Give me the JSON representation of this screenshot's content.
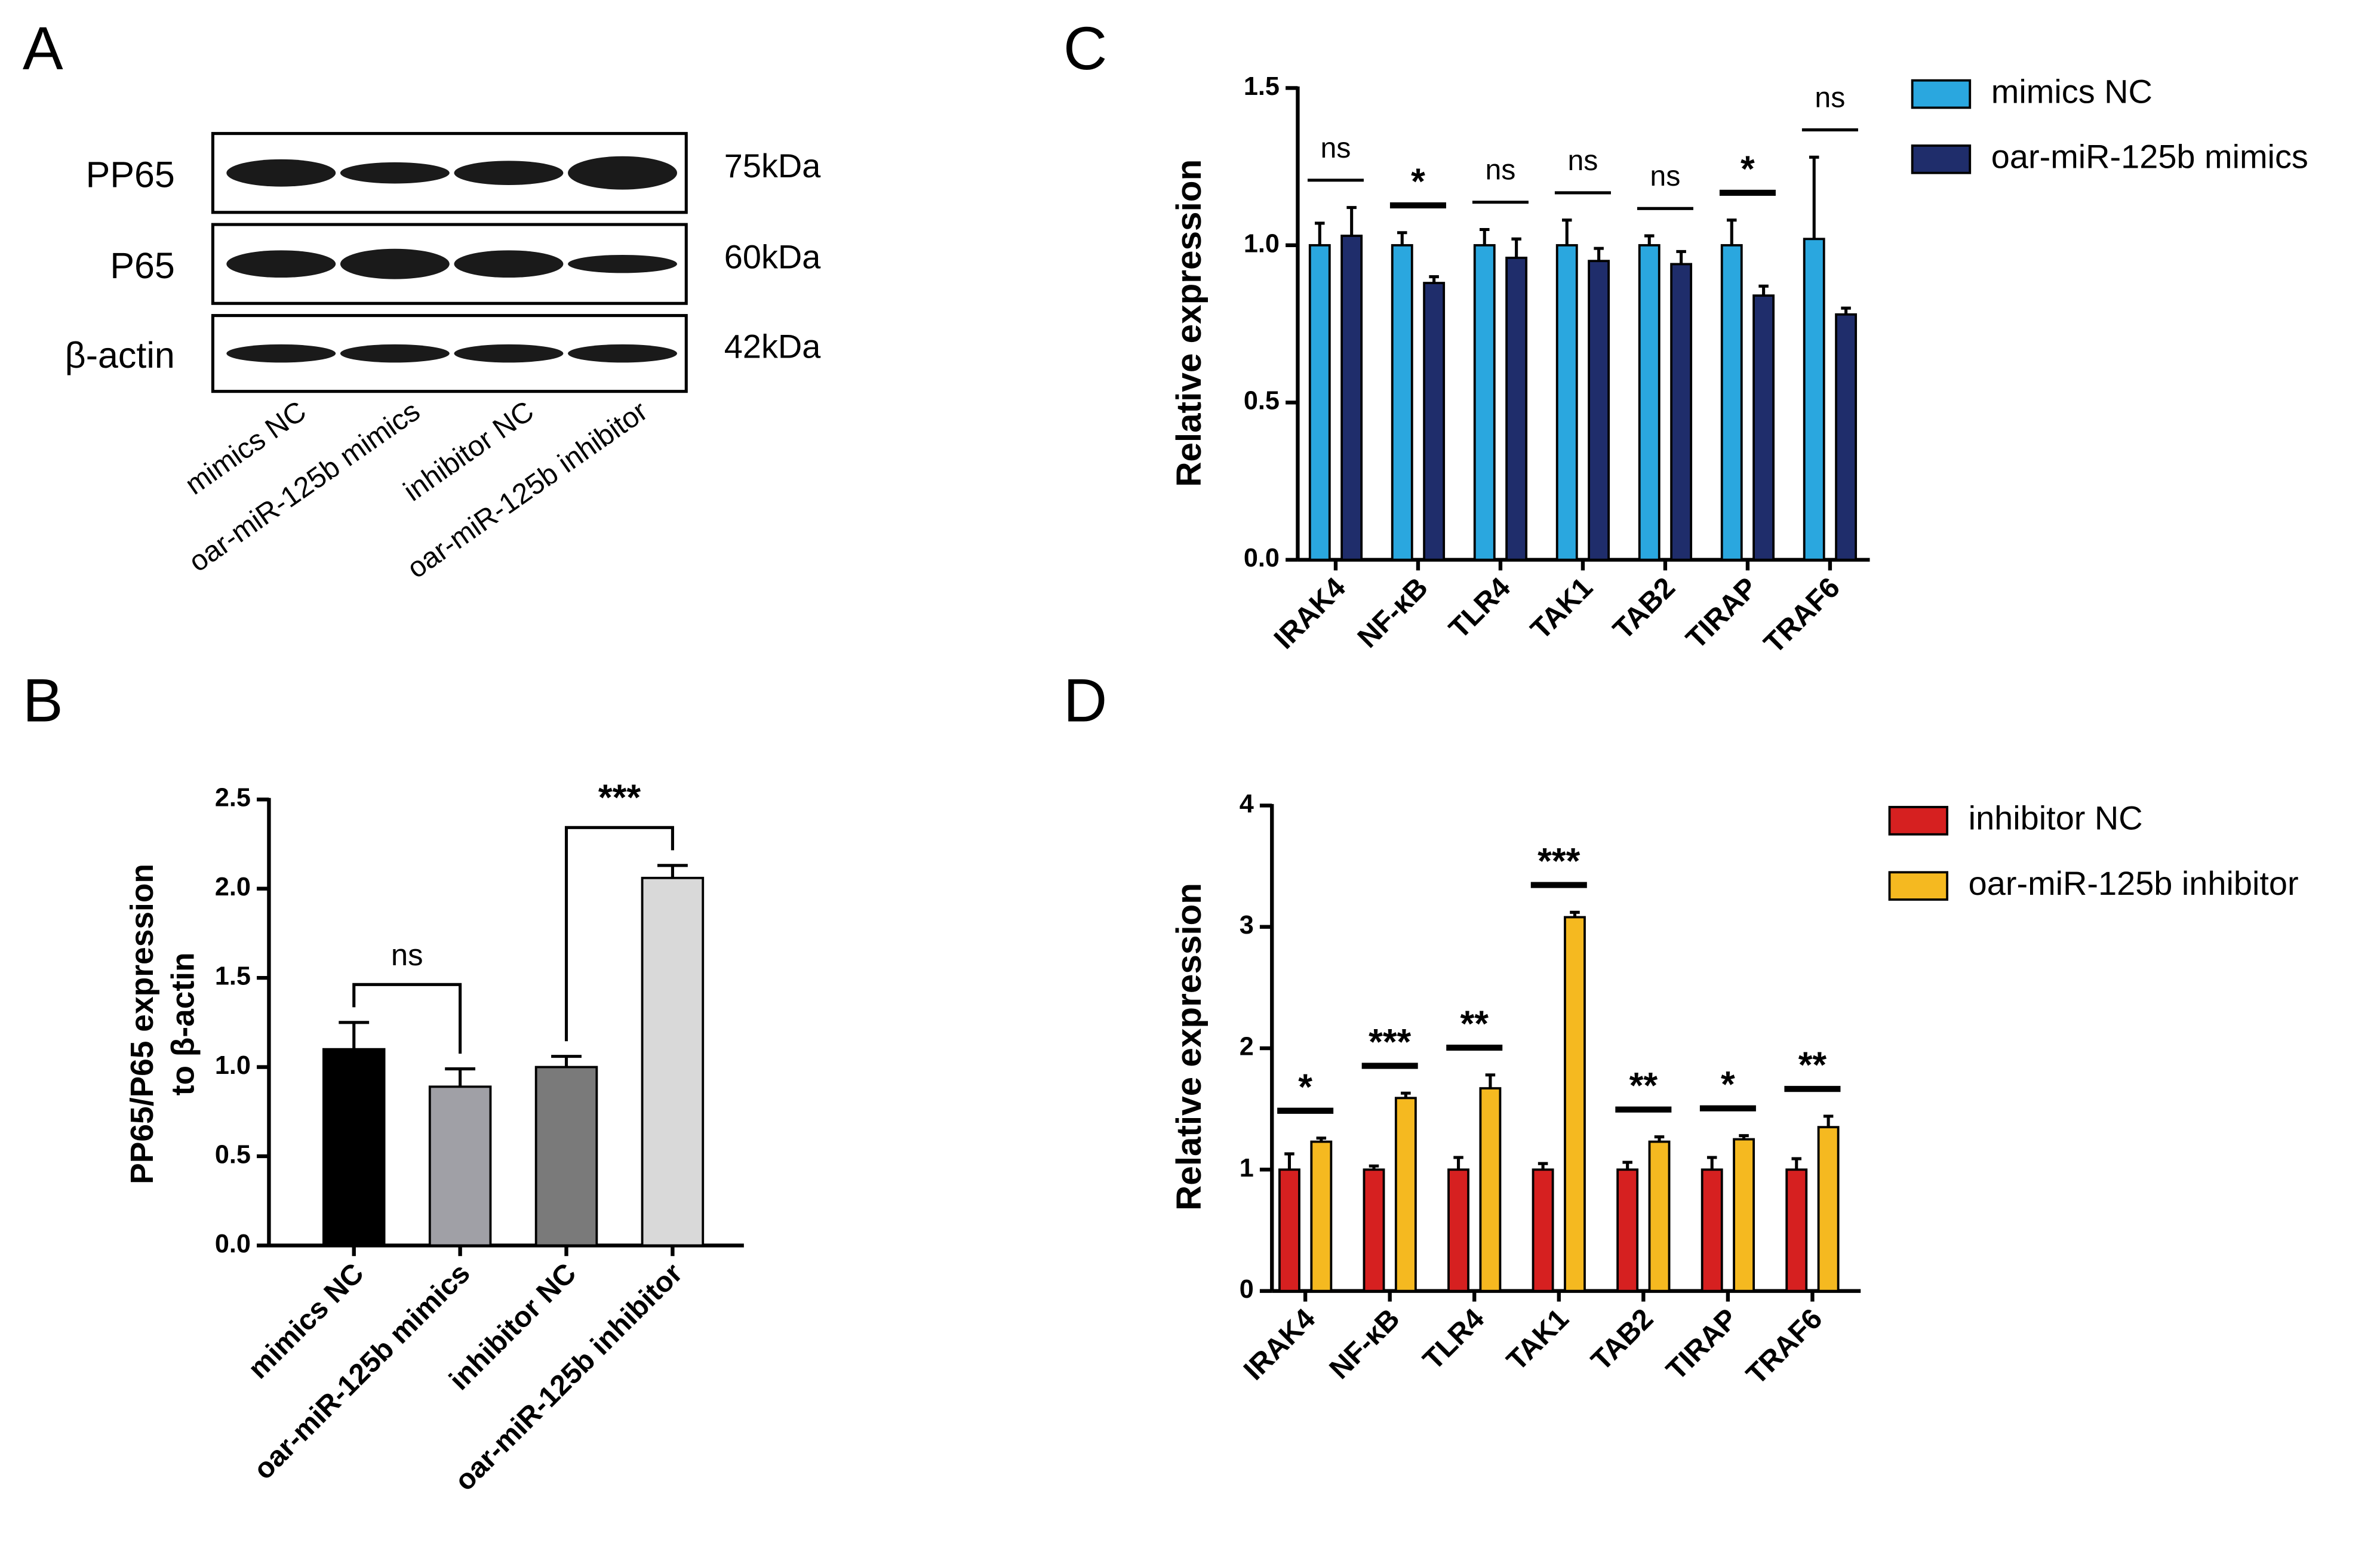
{
  "chart_data": [
    {
      "type": "blot",
      "panel": "A",
      "rows": [
        {
          "label": "PP65",
          "size": "75kDa"
        },
        {
          "label": "P65",
          "size": "60kDa"
        },
        {
          "label": "β-actin",
          "size": "42kDa"
        }
      ],
      "lanes": [
        "mimics NC",
        "oar-miR-125b mimics",
        "inhibitor NC",
        "oar-miR-125b inhibitor"
      ]
    },
    {
      "type": "bar",
      "panel": "B",
      "ylabel": [
        "PP65/P65 expression",
        "to β-actin"
      ],
      "categories": [
        "mimics NC",
        "oar-miR-125b mimics",
        "inhibitor NC",
        "oar-miR-125b inhibitor"
      ],
      "values": [
        1.1,
        0.89,
        1.0,
        2.06
      ],
      "errors": [
        0.15,
        0.1,
        0.06,
        0.07
      ],
      "colors": [
        "#000000",
        "#a0a0a6",
        "#7a7a7a",
        "#d9d9d9"
      ],
      "ylim": [
        0,
        2.5
      ],
      "yticks": [
        {
          "value": 0,
          "label": "0.0"
        },
        0.5,
        {
          "value": 1,
          "label": "1.0"
        },
        1.5,
        {
          "value": 2,
          "label": "2.0"
        },
        2.5
      ],
      "comparisons": [
        {
          "groups": [
            "mimics NC",
            "oar-miR-125b mimics"
          ],
          "label": "ns"
        },
        {
          "groups": [
            "inhibitor NC",
            "oar-miR-125b inhibitor"
          ],
          "label": "***"
        }
      ]
    },
    {
      "type": "grouped_bar",
      "panel": "C",
      "ylabel": "Relative expression",
      "categories": [
        "IRAK4",
        "NF-κB",
        "TLR4",
        "TAK1",
        "TAB2",
        "TIRAP",
        "TRAF6"
      ],
      "series": [
        {
          "name": "mimics NC",
          "color": "#2aa7df",
          "values": [
            1.0,
            1.0,
            1.0,
            1.0,
            1.0,
            1.0,
            1.02
          ],
          "errors": [
            0.07,
            0.04,
            0.05,
            0.08,
            0.03,
            0.08,
            0.26
          ]
        },
        {
          "name": "oar-miR-125b mimics",
          "color": "#1f2d6b",
          "values": [
            1.03,
            0.88,
            0.96,
            0.95,
            0.94,
            0.84,
            0.78
          ],
          "errors": [
            0.09,
            0.02,
            0.06,
            0.04,
            0.04,
            0.03,
            0.02
          ]
        }
      ],
      "annotations": [
        "ns",
        "*",
        "ns",
        "ns",
        "ns",
        "*",
        "ns"
      ],
      "ylim": [
        0,
        1.5
      ],
      "yticks": [
        {
          "value": 0,
          "label": "0.0"
        },
        0.5,
        {
          "value": 1,
          "label": "1.0"
        },
        1.5
      ]
    },
    {
      "type": "grouped_bar",
      "panel": "D",
      "ylabel": "Relative expression",
      "categories": [
        "IRAK4",
        "NF-κB",
        "TLR4",
        "TAK1",
        "TAB2",
        "TIRAP",
        "TRAF6"
      ],
      "series": [
        {
          "name": "inhibitor NC",
          "color": "#d62020",
          "values": [
            1.0,
            1.0,
            1.0,
            1.0,
            1.0,
            1.0,
            1.0
          ],
          "errors": [
            0.13,
            0.03,
            0.1,
            0.05,
            0.06,
            0.1,
            0.09
          ]
        },
        {
          "name": "oar-miR-125b inhibitor",
          "color": "#f5b920",
          "values": [
            1.23,
            1.59,
            1.67,
            3.08,
            1.23,
            1.25,
            1.35
          ],
          "errors": [
            0.03,
            0.04,
            0.11,
            0.04,
            0.04,
            0.03,
            0.09
          ]
        }
      ],
      "annotations": [
        "*",
        "***",
        "**",
        "***",
        "**",
        "*",
        "**"
      ],
      "ylim": [
        0,
        4
      ],
      "yticks": [
        0,
        1,
        2,
        3,
        4
      ]
    }
  ]
}
